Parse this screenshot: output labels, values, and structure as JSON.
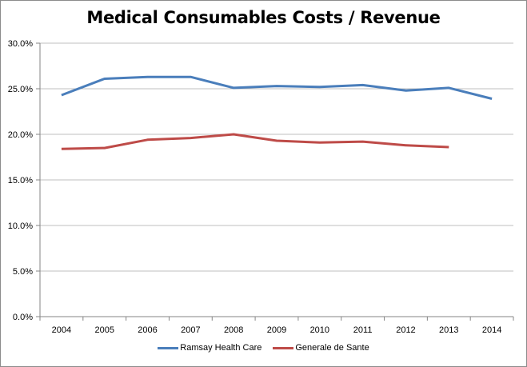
{
  "chart_data": {
    "type": "line",
    "title": "Medical Consumables Costs / Revenue",
    "xlabel": "",
    "ylabel": "",
    "categories": [
      "2004",
      "2005",
      "2006",
      "2007",
      "2008",
      "2009",
      "2010",
      "2011",
      "2012",
      "2013",
      "2014"
    ],
    "yticks": [
      "0.0%",
      "5.0%",
      "10.0%",
      "15.0%",
      "20.0%",
      "25.0%",
      "30.0%"
    ],
    "ylim": [
      0,
      0.3
    ],
    "ytick_step": 0.05,
    "grid": true,
    "legend_position": "bottom",
    "series": [
      {
        "name": "Ramsay Health Care",
        "color": "#4a7ebb",
        "values": [
          0.243,
          0.261,
          0.263,
          0.263,
          0.251,
          0.253,
          0.252,
          0.254,
          0.248,
          0.251,
          0.239
        ]
      },
      {
        "name": "Generale de Sante",
        "color": "#be4b48",
        "values": [
          0.184,
          0.185,
          0.194,
          0.196,
          0.2,
          0.193,
          0.191,
          0.192,
          0.188,
          0.186,
          null
        ]
      }
    ]
  }
}
